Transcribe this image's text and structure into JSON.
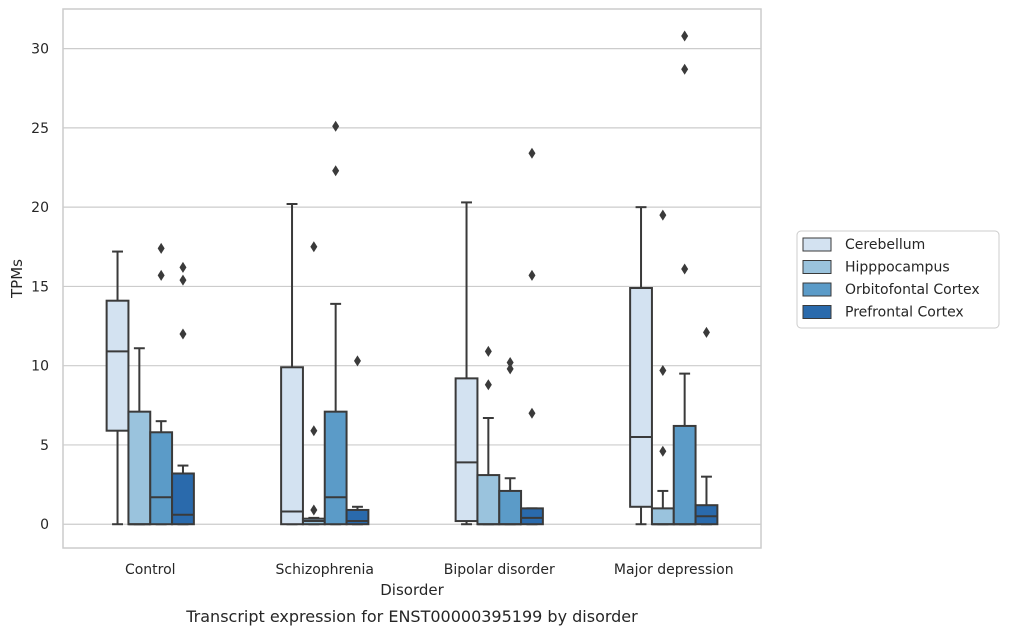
{
  "chart_data": {
    "type": "box",
    "title": "",
    "caption": "Transcript expression for ENST00000395199 by disorder",
    "xlabel": "Disorder",
    "ylabel": "TPMs",
    "ylim": [
      -1.5,
      32.5
    ],
    "yticks": [
      0,
      5,
      10,
      15,
      20,
      25,
      30
    ],
    "grid": "horizontal",
    "legend_position": "right",
    "categories": [
      "Control",
      "Schizophrenia",
      "Bipolar disorder",
      "Major depression"
    ],
    "series": [
      {
        "name": "Cerebellum",
        "color": "#d3e2f1",
        "boxes": [
          {
            "whisker_low": 0,
            "q1": 5.9,
            "median": 10.9,
            "q3": 14.1,
            "whisker_high": 17.2,
            "outliers": []
          },
          {
            "whisker_low": 0,
            "q1": 0,
            "median": 0.8,
            "q3": 9.9,
            "whisker_high": 20.2,
            "outliers": []
          },
          {
            "whisker_low": 0,
            "q1": 0.2,
            "median": 3.9,
            "q3": 9.2,
            "whisker_high": 20.3,
            "outliers": []
          },
          {
            "whisker_low": 0,
            "q1": 1.1,
            "median": 5.5,
            "q3": 14.9,
            "whisker_high": 20.0,
            "outliers": []
          }
        ]
      },
      {
        "name": "Hipppocampus",
        "color": "#9ac3dd",
        "boxes": [
          {
            "whisker_low": 0,
            "q1": 0,
            "median": 0,
            "q3": 7.1,
            "whisker_high": 11.1,
            "outliers": []
          },
          {
            "whisker_low": 0,
            "q1": 0,
            "median": 0.2,
            "q3": 0.35,
            "whisker_high": 0.4,
            "outliers": [
              0.9,
              5.9,
              17.5
            ]
          },
          {
            "whisker_low": 0,
            "q1": 0,
            "median": 0,
            "q3": 3.1,
            "whisker_high": 6.7,
            "outliers": [
              8.8,
              10.9
            ]
          },
          {
            "whisker_low": 0,
            "q1": 0,
            "median": 0,
            "q3": 1.0,
            "whisker_high": 2.1,
            "outliers": [
              4.6,
              9.7,
              19.5
            ]
          }
        ]
      },
      {
        "name": "Orbitofontal Cortex",
        "color": "#5b9bc8",
        "boxes": [
          {
            "whisker_low": 0,
            "q1": 0,
            "median": 1.7,
            "q3": 5.8,
            "whisker_high": 6.5,
            "outliers": [
              15.7,
              17.4
            ]
          },
          {
            "whisker_low": 0,
            "q1": 0,
            "median": 1.7,
            "q3": 7.1,
            "whisker_high": 13.9,
            "outliers": [
              22.3,
              25.1
            ]
          },
          {
            "whisker_low": 0,
            "q1": 0,
            "median": 0,
            "q3": 2.1,
            "whisker_high": 2.9,
            "outliers": [
              9.8,
              10.2
            ]
          },
          {
            "whisker_low": 0,
            "q1": 0,
            "median": 0,
            "q3": 6.2,
            "whisker_high": 9.5,
            "outliers": [
              16.1,
              28.7,
              30.8
            ]
          }
        ]
      },
      {
        "name": "Prefrontal Cortex",
        "color": "#2a6aac",
        "boxes": [
          {
            "whisker_low": 0,
            "q1": 0,
            "median": 0.6,
            "q3": 3.2,
            "whisker_high": 3.7,
            "outliers": [
              12.0,
              15.4,
              16.2
            ]
          },
          {
            "whisker_low": 0,
            "q1": 0,
            "median": 0.2,
            "q3": 0.9,
            "whisker_high": 1.1,
            "outliers": [
              10.3
            ]
          },
          {
            "whisker_low": 0,
            "q1": 0,
            "median": 0.4,
            "q3": 1.0,
            "whisker_high": 1.0,
            "outliers": [
              7.0,
              15.7,
              23.4
            ]
          },
          {
            "whisker_low": 0,
            "q1": 0,
            "median": 0.5,
            "q3": 1.2,
            "whisker_high": 3.0,
            "outliers": [
              12.1
            ]
          }
        ]
      }
    ]
  }
}
